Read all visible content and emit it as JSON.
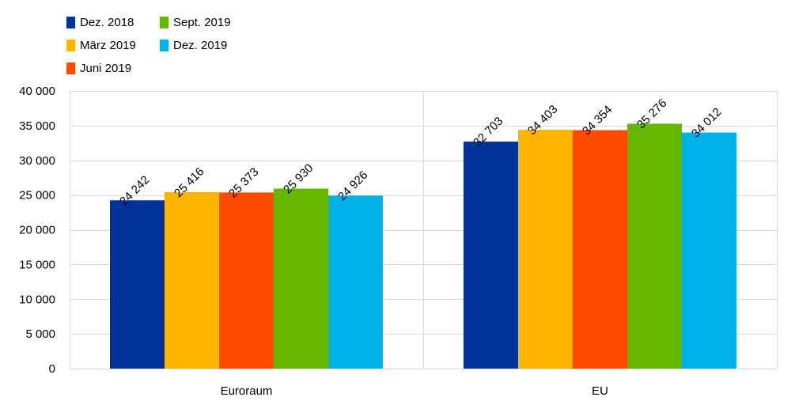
{
  "chart_data": {
    "type": "bar",
    "categories": [
      "Euroraum",
      "EU"
    ],
    "series": [
      {
        "name": "Dez. 2018",
        "color": "#003399",
        "values": [
          24242,
          32703
        ],
        "labels": [
          "24 242",
          "32 703"
        ]
      },
      {
        "name": "März 2019",
        "color": "#FFB400",
        "values": [
          25416,
          34403
        ],
        "labels": [
          "25 416",
          "34 403"
        ]
      },
      {
        "name": "Juni 2019",
        "color": "#FF4B00",
        "values": [
          25373,
          34354
        ],
        "labels": [
          "25 373",
          "34 354"
        ]
      },
      {
        "name": "Sept. 2019",
        "color": "#65B800",
        "values": [
          25930,
          35276
        ],
        "labels": [
          "25 930",
          "35 276"
        ]
      },
      {
        "name": "Dez. 2019",
        "color": "#00B1EA",
        "values": [
          24926,
          34012
        ],
        "labels": [
          "24 926",
          "34 012"
        ]
      }
    ],
    "yticks": [
      0,
      5000,
      10000,
      15000,
      20000,
      25000,
      30000,
      35000,
      40000
    ],
    "ytick_labels": [
      "0",
      "5 000",
      "10 000",
      "15 000",
      "20 000",
      "25 000",
      "30 000",
      "35 000",
      "40 000"
    ],
    "ylim": [
      0,
      40000
    ],
    "grid": true,
    "legend_position": "top-left",
    "title": "",
    "xlabel": "",
    "ylabel": ""
  }
}
